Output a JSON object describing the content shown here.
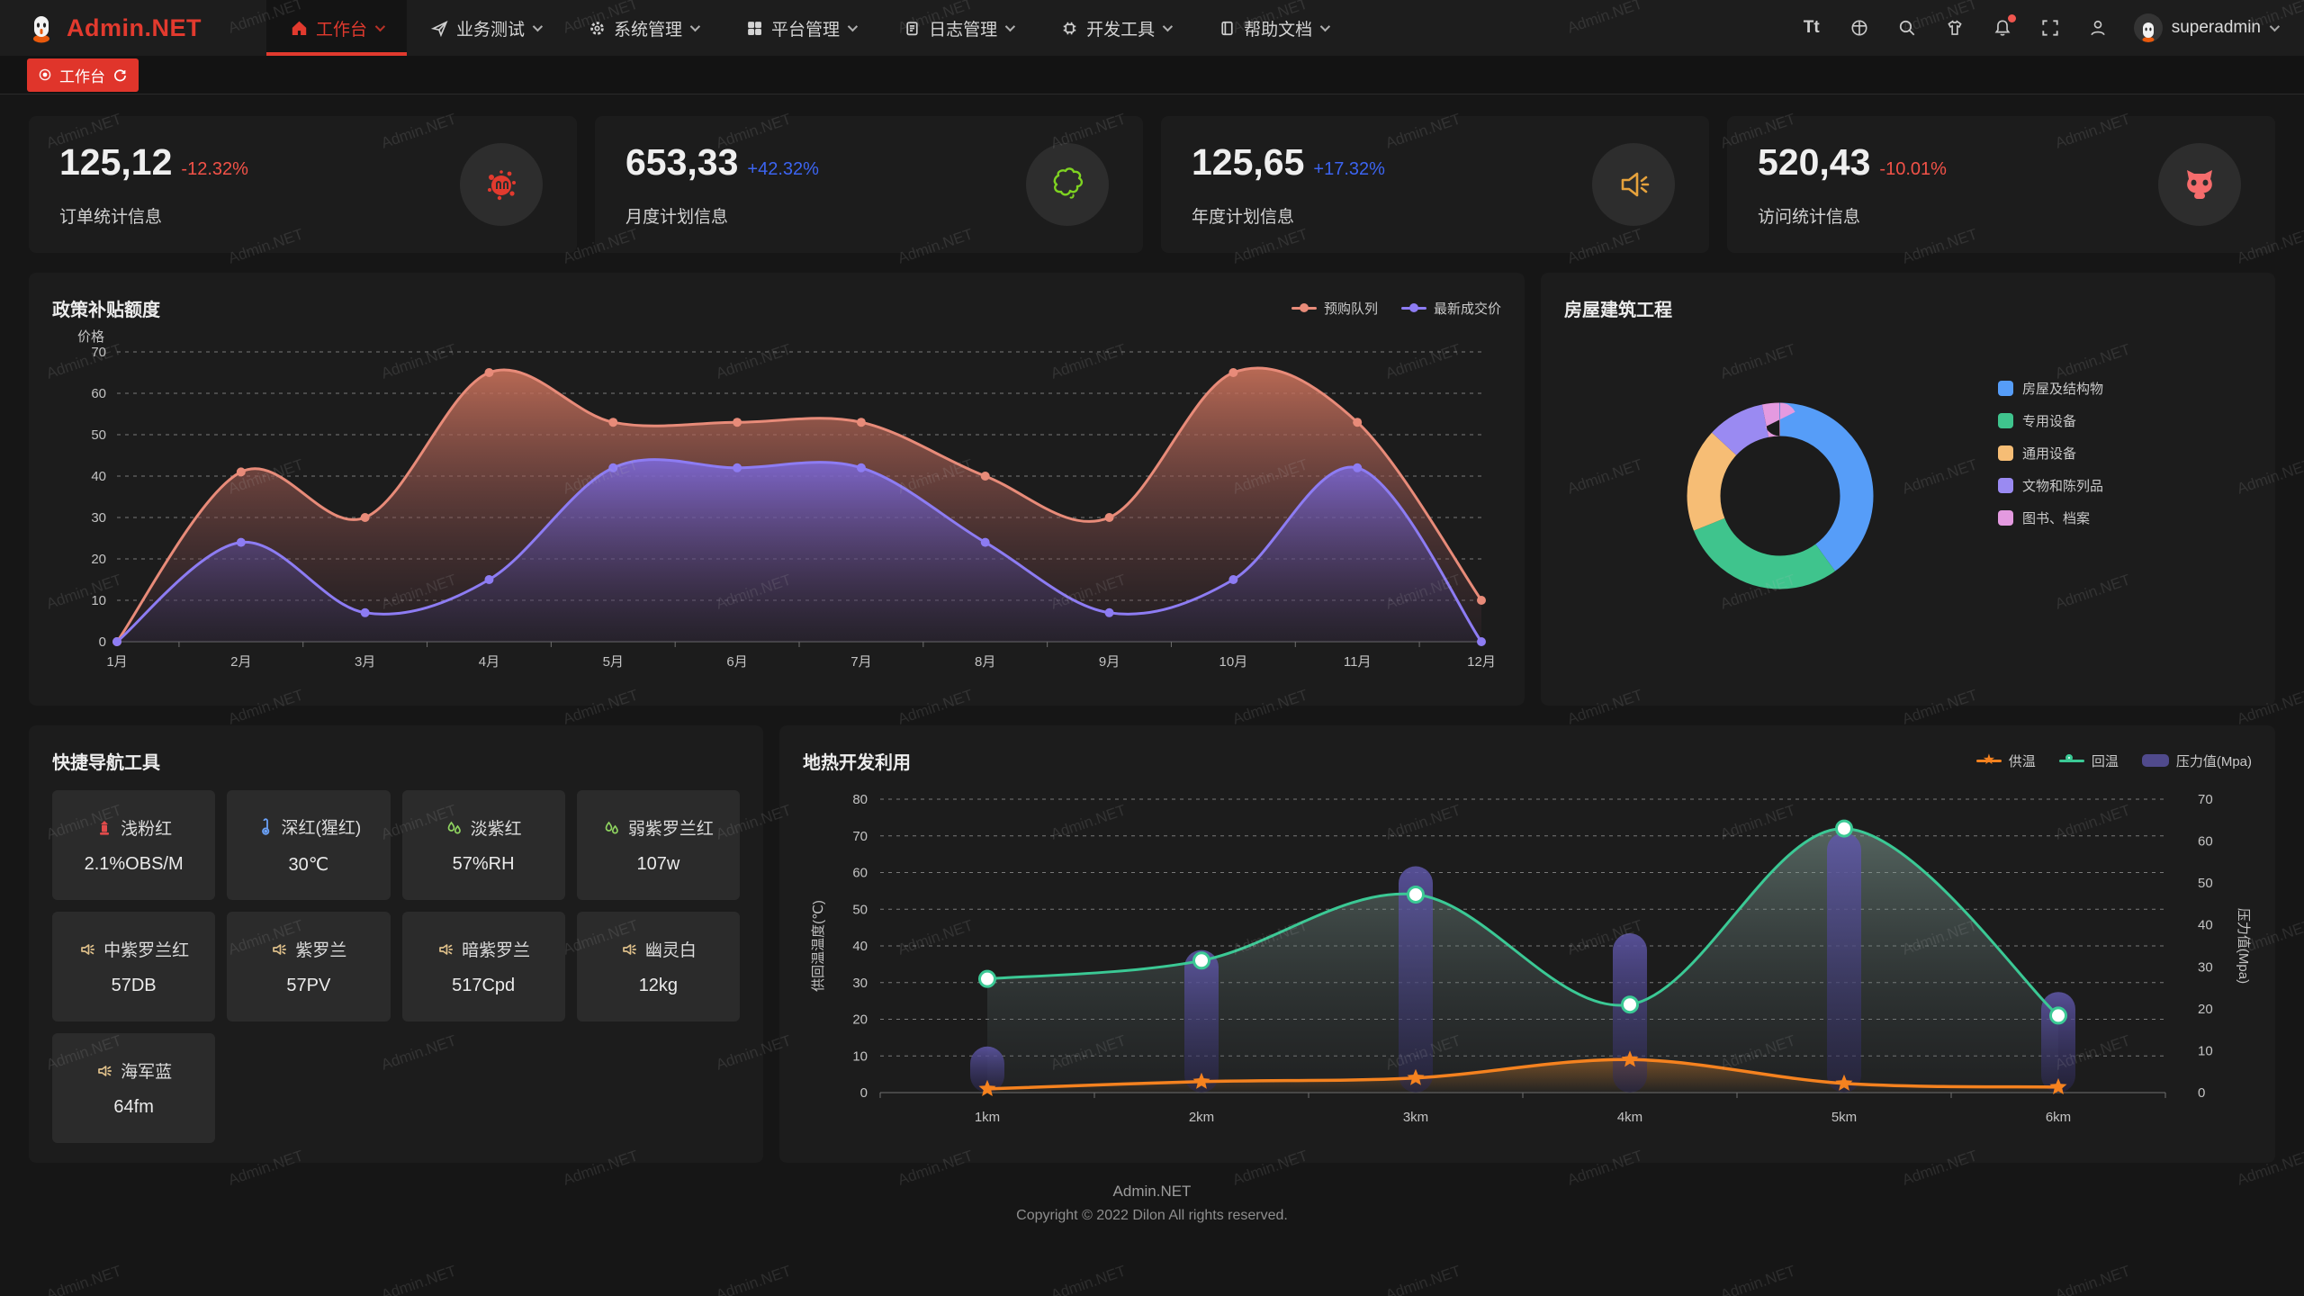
{
  "app": {
    "logo_text": "Admin.NET",
    "watermark": "Admin.NET"
  },
  "navbar": {
    "items": [
      {
        "label": "工作台",
        "icon": "home-icon",
        "active": true
      },
      {
        "label": "业务测试",
        "icon": "send-icon",
        "active": false
      },
      {
        "label": "系统管理",
        "icon": "gear-icon",
        "active": false
      },
      {
        "label": "平台管理",
        "icon": "grid-icon",
        "active": false
      },
      {
        "label": "日志管理",
        "icon": "log-icon",
        "active": false
      },
      {
        "label": "开发工具",
        "icon": "chip-icon",
        "active": false
      },
      {
        "label": "帮助文档",
        "icon": "book-icon",
        "active": false
      }
    ],
    "font_icon": "Tt",
    "user": "superadmin"
  },
  "tabbar": {
    "active_tab": "工作台"
  },
  "stat_cards": [
    {
      "value": "125,12",
      "delta": "-12.32%",
      "trend": "down",
      "label": "订单统计信息",
      "icon": "paint-splat-icon",
      "icon_color": "#e23a2e"
    },
    {
      "value": "653,33",
      "delta": "+42.32%",
      "trend": "up",
      "label": "月度计划信息",
      "icon": "china-map-icon",
      "icon_color": "#7ed321"
    },
    {
      "value": "125,65",
      "delta": "+17.32%",
      "trend": "up",
      "label": "年度计划信息",
      "icon": "speaker-icon",
      "icon_color": "#e6a23c"
    },
    {
      "value": "520,43",
      "delta": "-10.01%",
      "trend": "down",
      "label": "访问统计信息",
      "icon": "cat-icon",
      "icon_color": "#f56c6c"
    }
  ],
  "chart_data": [
    {
      "id": "subsidy",
      "type": "line",
      "title": "政策补贴额度",
      "ylabel": "价格",
      "ylim": [
        0,
        70
      ],
      "y_step": 10,
      "grid": "dashed",
      "legend_position": "top-right",
      "categories": [
        "1月",
        "2月",
        "3月",
        "4月",
        "5月",
        "6月",
        "7月",
        "8月",
        "9月",
        "10月",
        "11月",
        "12月"
      ],
      "series": [
        {
          "name": "预购队列",
          "color": "#e88b79",
          "values": [
            0,
            41,
            30,
            65,
            53,
            53,
            53,
            40,
            30,
            65,
            53,
            10
          ]
        },
        {
          "name": "最新成交价",
          "color": "#8d7cf3",
          "values": [
            0,
            24,
            7,
            15,
            42,
            42,
            42,
            24,
            7,
            15,
            42,
            0
          ]
        }
      ]
    },
    {
      "id": "building",
      "type": "pie",
      "title": "房屋建筑工程",
      "legend_position": "right",
      "categories": [
        "房屋及结构物",
        "专用设备",
        "通用设备",
        "文物和陈列品",
        "图书、档案"
      ],
      "values": [
        40,
        29,
        18,
        10,
        3
      ],
      "colors": [
        "#569df8",
        "#3fc48d",
        "#f6bd75",
        "#9a8af2",
        "#e49ae0"
      ]
    },
    {
      "id": "geothermal",
      "type": "line+bar",
      "title": "地热开发利用",
      "categories": [
        "1km",
        "2km",
        "3km",
        "4km",
        "5km",
        "6km"
      ],
      "ylabel_left": "供回温温度(℃)",
      "ylabel_right": "压力值(Mpa)",
      "ylim_left": [
        0,
        80
      ],
      "ylim_right": [
        0,
        70
      ],
      "grid": "dashed",
      "legend_position": "top-right",
      "series": [
        {
          "name": "供温",
          "type": "line",
          "axis": "left",
          "marker": "star",
          "color": "#f5821f",
          "values": [
            1,
            3,
            4,
            9,
            2.5,
            1.5
          ]
        },
        {
          "name": "回温",
          "type": "line",
          "axis": "left",
          "marker": "circle",
          "color": "#3bc995",
          "values": [
            31,
            36,
            54,
            24,
            72,
            21
          ]
        },
        {
          "name": "压力值(Mpa)",
          "type": "bar",
          "axis": "right",
          "color": "#504a8c",
          "values": [
            11,
            34,
            54,
            38,
            62,
            24
          ]
        }
      ]
    }
  ],
  "quick_nav": {
    "title": "快捷导航工具",
    "items": [
      {
        "name": "浅粉红",
        "value": "2.1%OBS/M",
        "icon": "hydrant-icon"
      },
      {
        "name": "深红(猩红)",
        "value": "30℃",
        "icon": "thermometer-icon"
      },
      {
        "name": "淡紫红",
        "value": "57%RH",
        "icon": "droplets-icon"
      },
      {
        "name": "弱紫罗兰红",
        "value": "107w",
        "icon": "droplets-icon"
      },
      {
        "name": "中紫罗兰红",
        "value": "57DB",
        "icon": "speaker-icon"
      },
      {
        "name": "紫罗兰",
        "value": "57PV",
        "icon": "speaker-icon"
      },
      {
        "name": "暗紫罗兰",
        "value": "517Cpd",
        "icon": "speaker-icon"
      },
      {
        "name": "幽灵白",
        "value": "12kg",
        "icon": "speaker-icon"
      },
      {
        "name": "海军蓝",
        "value": "64fm",
        "icon": "speaker-icon"
      }
    ]
  },
  "footer": {
    "line1": "Admin.NET",
    "line2": "Copyright © 2022 Dilon All rights reserved."
  }
}
